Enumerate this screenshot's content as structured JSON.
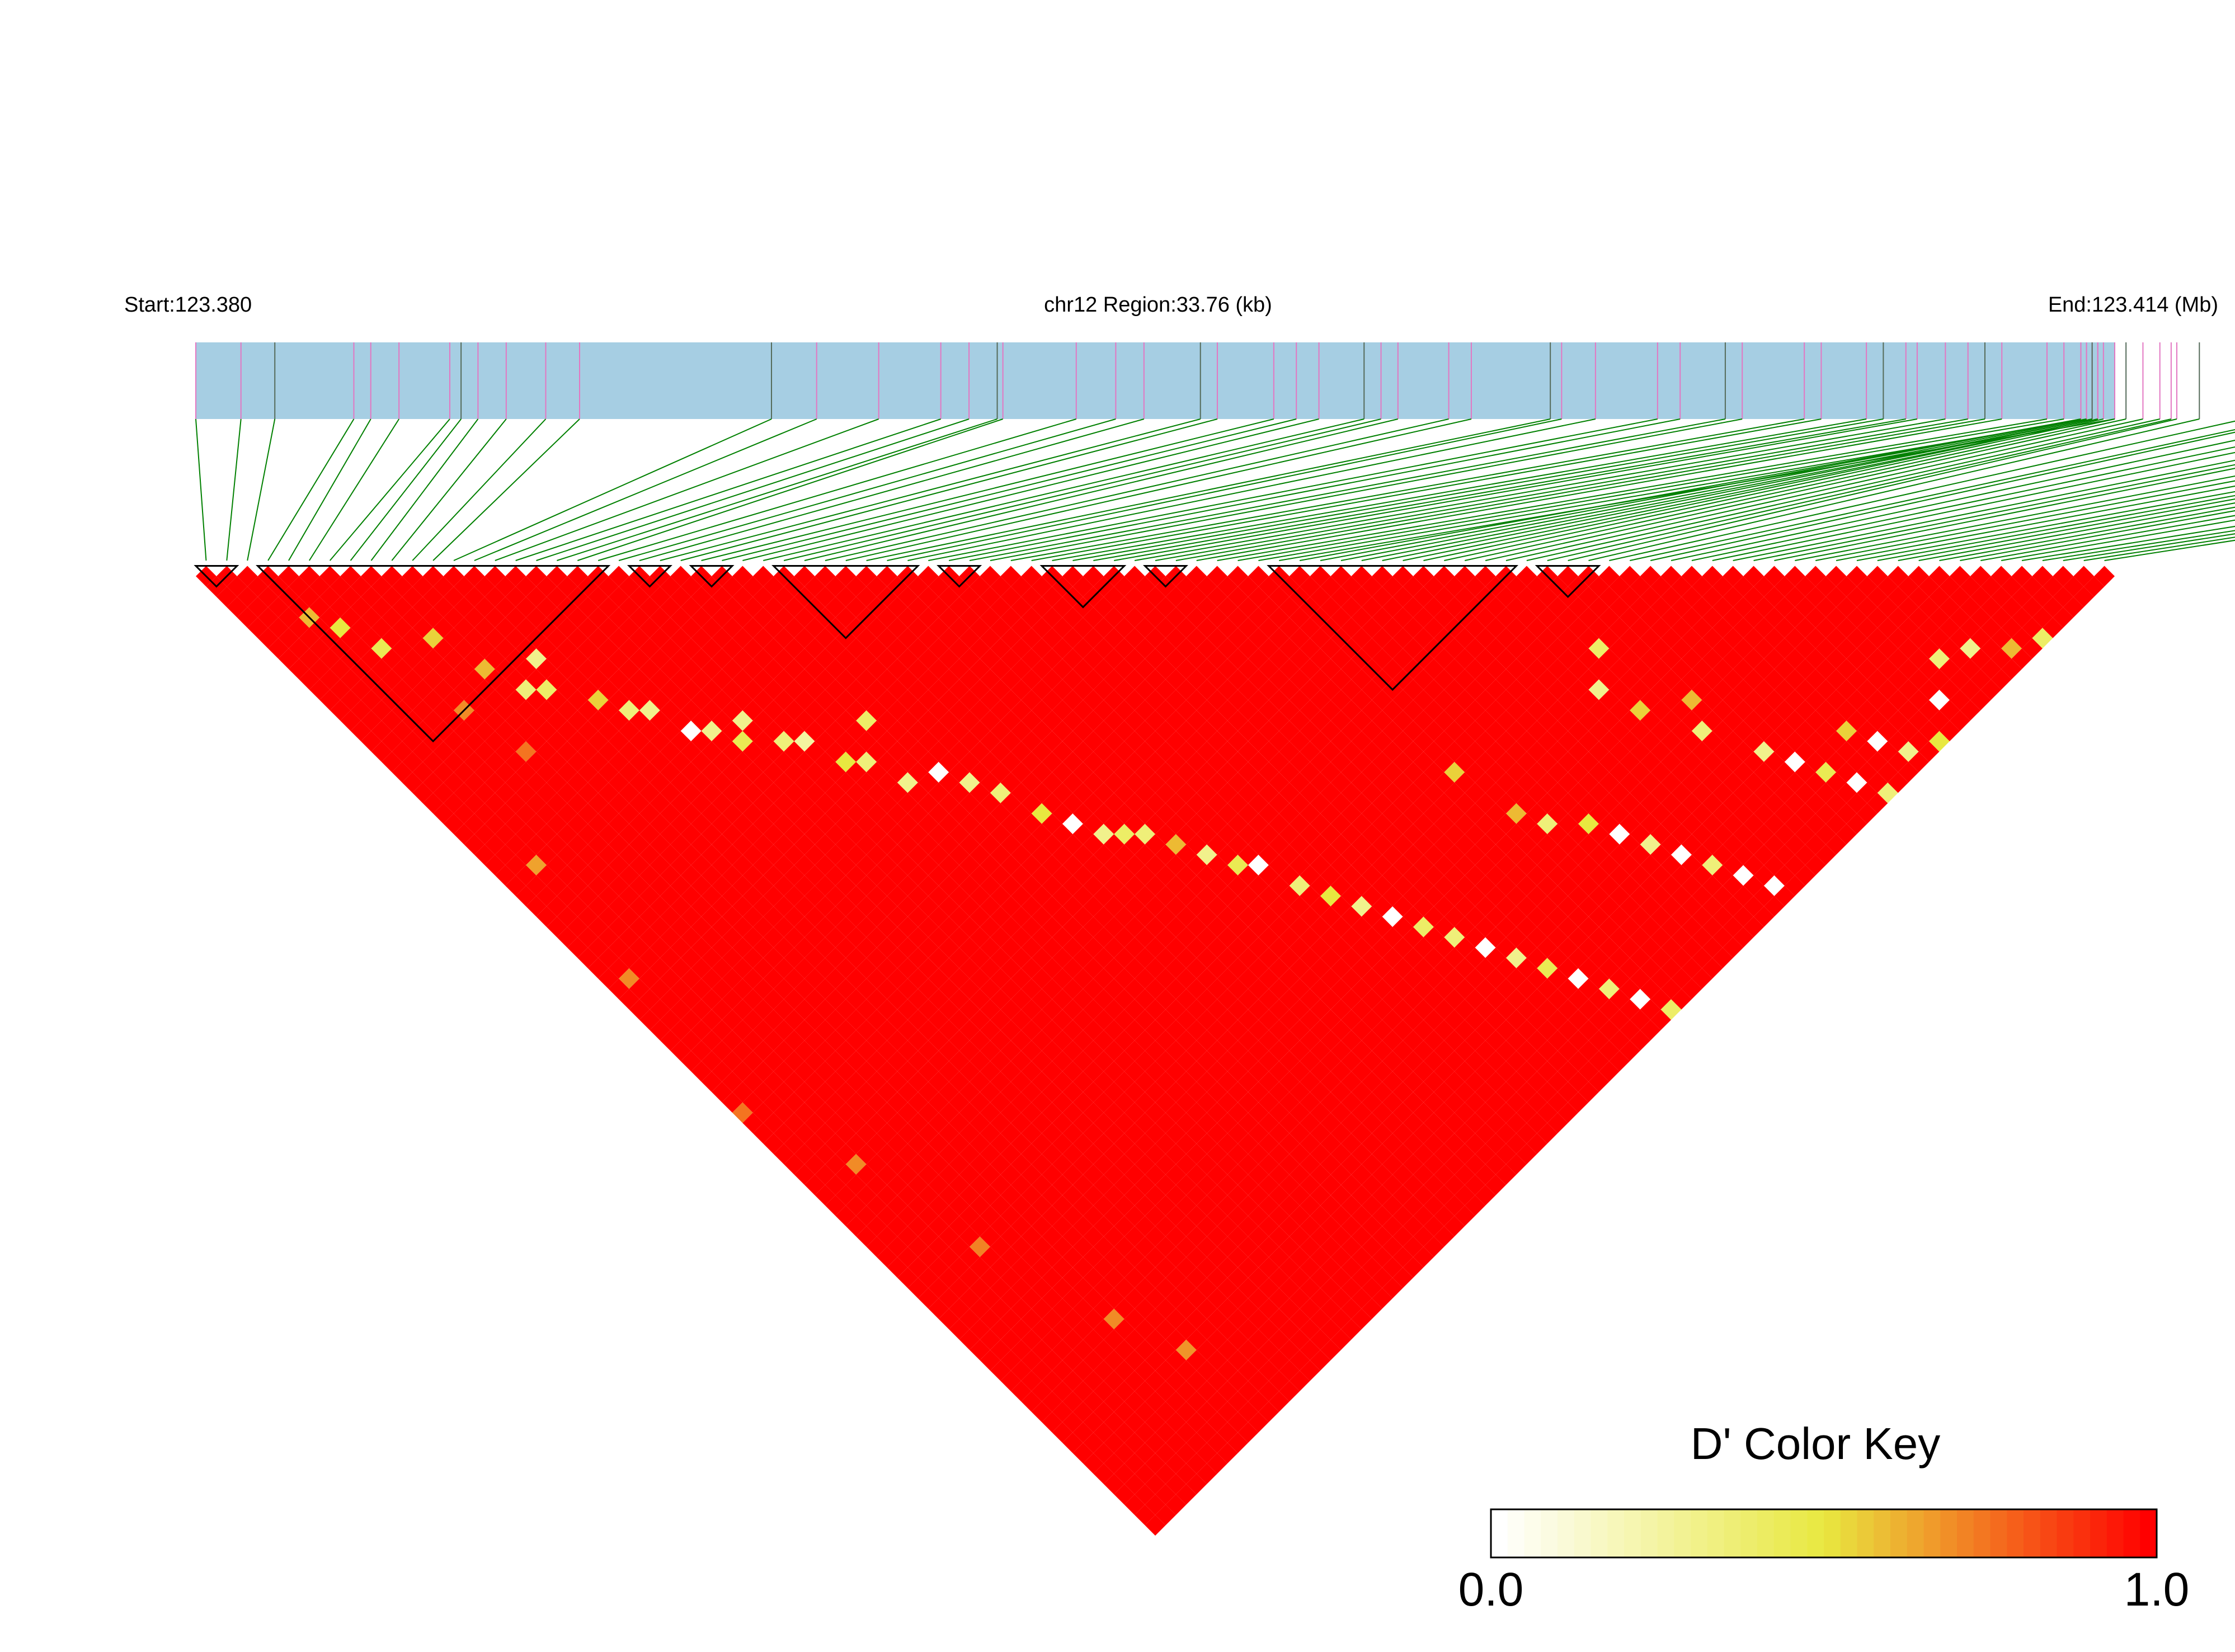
{
  "header": {
    "start_label": "Start:123.380",
    "region_label": "chr12 Region:33.76 (kb)",
    "end_label": "End:123.414 (Mb)"
  },
  "colors": {
    "track": "#a6cee3",
    "snp_line": "#008000",
    "snp_tick_pink": "#e377c2",
    "snp_tick_dark": "#556b5a",
    "high": "#ff0000",
    "mid": "#e8e840",
    "low": "#ffffff",
    "block_outline": "#000000"
  },
  "chart_data": {
    "type": "heatmap",
    "title": "",
    "chromosome": "chr12",
    "region_start_mb": 123.38,
    "region_end_mb": 123.414,
    "region_kb": 33.76,
    "n_snps": 93,
    "snp_positions_mb": [
      123.38,
      123.3808,
      123.3814,
      123.3828,
      123.3831,
      123.3836,
      123.3845,
      123.3847,
      123.385,
      123.3855,
      123.3862,
      123.3868,
      123.3902,
      123.391,
      123.3921,
      123.3932,
      123.3937,
      123.3942,
      123.3943,
      123.3956,
      123.3963,
      123.3968,
      123.3978,
      123.3981,
      123.3991,
      123.3995,
      123.3999,
      123.4007,
      123.401,
      123.4013,
      123.4022,
      123.4026,
      123.404,
      123.4042,
      123.4048,
      123.4059,
      123.4063,
      123.4071,
      123.4074,
      123.4085,
      123.4088,
      123.4096,
      123.4099,
      123.4103,
      123.4105,
      123.411,
      123.4114,
      123.4117,
      123.412,
      123.4128,
      123.4131,
      123.4135,
      123.414,
      123.4134,
      123.4134,
      123.4135,
      123.4136,
      123.4136,
      123.4137,
      123.4137,
      123.4138,
      123.414,
      123.4142,
      123.4145,
      123.4148,
      123.415,
      123.4151,
      123.4155,
      123.4163,
      123.417,
      123.4172,
      123.4179,
      123.4185,
      123.419,
      123.4198,
      123.4202,
      123.4205,
      123.4214,
      123.4219,
      123.4225,
      123.4232,
      123.4236,
      123.4239,
      123.4243,
      123.4248,
      123.4251,
      123.4258,
      123.4265,
      123.428,
      123.4288,
      123.4292,
      123.4297,
      123.43
    ],
    "dprime_scale": {
      "min": 0.0,
      "max": 1.0
    },
    "default_dprime": 1.0,
    "pairs_low_dprime": [
      [
        3,
        7,
        0.6
      ],
      [
        4,
        9,
        0.5
      ],
      [
        5,
        12,
        0.45
      ],
      [
        8,
        14,
        0.55
      ],
      [
        9,
        18,
        0.6
      ],
      [
        10,
        21,
        0.35
      ],
      [
        11,
        22,
        0.4
      ],
      [
        12,
        20,
        0.3
      ],
      [
        13,
        25,
        0.55
      ],
      [
        14,
        27,
        0.35
      ],
      [
        15,
        28,
        0.3
      ],
      [
        16,
        31,
        0.0
      ],
      [
        17,
        32,
        0.3
      ],
      [
        18,
        34,
        0.45
      ],
      [
        19,
        33,
        0.3
      ],
      [
        20,
        36,
        0.35
      ],
      [
        21,
        37,
        0.25
      ],
      [
        22,
        40,
        0.5
      ],
      [
        23,
        41,
        0.35
      ],
      [
        24,
        44,
        0.3
      ],
      [
        25,
        39,
        0.4
      ],
      [
        26,
        45,
        0.0
      ],
      [
        27,
        47,
        0.3
      ],
      [
        28,
        49,
        0.35
      ],
      [
        29,
        52,
        0.5
      ],
      [
        30,
        54,
        0.0
      ],
      [
        31,
        56,
        0.3
      ],
      [
        32,
        57,
        0.4
      ],
      [
        33,
        58,
        0.35
      ],
      [
        34,
        60,
        0.6
      ],
      [
        35,
        62,
        0.3
      ],
      [
        36,
        64,
        0.45
      ],
      [
        37,
        65,
        0.0
      ],
      [
        38,
        68,
        0.35
      ],
      [
        39,
        70,
        0.5
      ],
      [
        40,
        72,
        0.3
      ],
      [
        41,
        74,
        0.0
      ],
      [
        42,
        76,
        0.4
      ],
      [
        43,
        78,
        0.35
      ],
      [
        44,
        80,
        0.0
      ],
      [
        45,
        82,
        0.3
      ],
      [
        46,
        84,
        0.45
      ],
      [
        47,
        86,
        0.0
      ],
      [
        48,
        88,
        0.35
      ],
      [
        49,
        90,
        0.0
      ],
      [
        50,
        92,
        0.4
      ],
      [
        51,
        70,
        0.55
      ],
      [
        52,
        75,
        0.6
      ],
      [
        53,
        77,
        0.35
      ],
      [
        55,
        79,
        0.5
      ],
      [
        56,
        81,
        0.0
      ],
      [
        57,
        83,
        0.3
      ],
      [
        58,
        85,
        0.0
      ],
      [
        59,
        87,
        0.35
      ],
      [
        60,
        89,
        0.0
      ],
      [
        61,
        91,
        0.0
      ],
      [
        62,
        73,
        0.3
      ],
      [
        63,
        76,
        0.55
      ],
      [
        64,
        71,
        0.4
      ],
      [
        65,
        80,
        0.35
      ],
      [
        66,
        78,
        0.6
      ],
      [
        67,
        84,
        0.3
      ],
      [
        68,
        86,
        0.0
      ],
      [
        69,
        88,
        0.45
      ],
      [
        70,
        90,
        0.0
      ],
      [
        71,
        92,
        0.35
      ],
      [
        72,
        87,
        0.55
      ],
      [
        73,
        89,
        0.0
      ],
      [
        74,
        91,
        0.3
      ],
      [
        76,
        92,
        0.5
      ],
      [
        78,
        90,
        0.0
      ],
      [
        80,
        88,
        0.35
      ],
      [
        82,
        89,
        0.3
      ],
      [
        84,
        91,
        0.6
      ],
      [
        86,
        92,
        0.4
      ],
      [
        6,
        19,
        0.7
      ],
      [
        7,
        24,
        0.75
      ],
      [
        2,
        30,
        0.65
      ],
      [
        1,
        40,
        0.7
      ],
      [
        0,
        52,
        0.75
      ],
      [
        3,
        60,
        0.7
      ],
      [
        5,
        70,
        0.72
      ],
      [
        8,
        80,
        0.7
      ],
      [
        10,
        85,
        0.68
      ]
    ],
    "ld_blocks": [
      [
        0,
        1
      ],
      [
        3,
        19
      ],
      [
        21,
        22
      ],
      [
        24,
        25
      ],
      [
        28,
        34
      ],
      [
        36,
        37
      ],
      [
        41,
        44
      ],
      [
        46,
        47
      ],
      [
        52,
        63
      ],
      [
        65,
        67
      ]
    ],
    "color_key": {
      "title": "D' Color Key",
      "min_label": "0.0",
      "max_label": "1.0",
      "steps": 40
    }
  }
}
